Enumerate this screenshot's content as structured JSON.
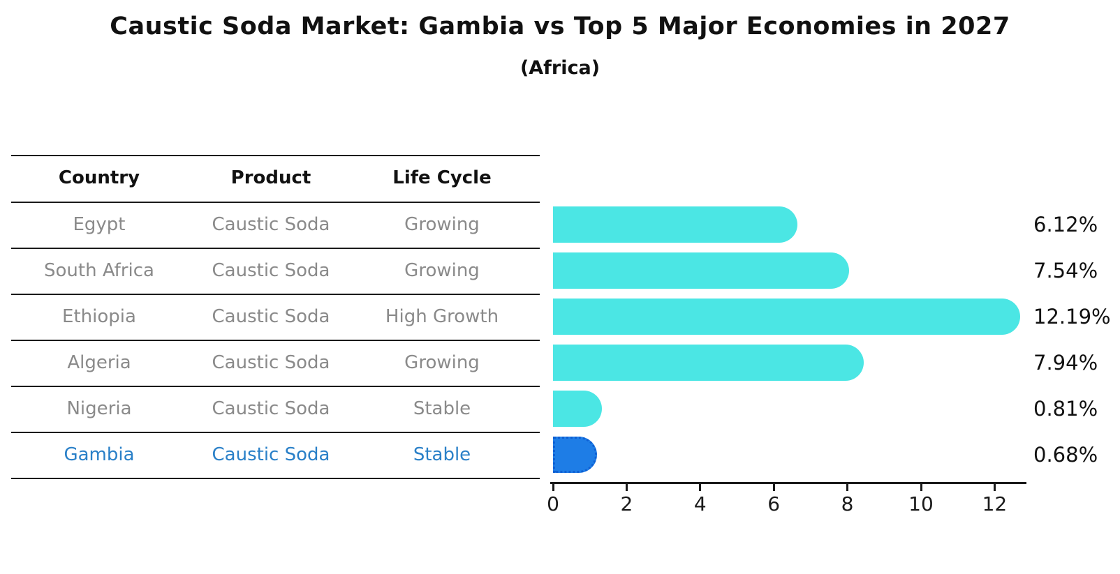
{
  "title": "Caustic Soda Market: Gambia vs Top 5 Major Economies in 2027",
  "subtitle": "(Africa)",
  "table": {
    "headers": [
      "Country",
      "Product",
      "Life Cycle"
    ],
    "rows": [
      {
        "country": "Egypt",
        "product": "Caustic Soda",
        "life_cycle": "Growing",
        "highlight": false
      },
      {
        "country": "South Africa",
        "product": "Caustic Soda",
        "life_cycle": "Growing",
        "highlight": false
      },
      {
        "country": "Ethiopia",
        "product": "Caustic Soda",
        "life_cycle": "High Growth",
        "highlight": false
      },
      {
        "country": "Algeria",
        "product": "Caustic Soda",
        "life_cycle": "Growing",
        "highlight": false
      },
      {
        "country": "Nigeria",
        "product": "Caustic Soda",
        "life_cycle": "Stable",
        "highlight": false
      },
      {
        "country": "Gambia",
        "product": "Caustic Soda",
        "life_cycle": "Stable",
        "highlight": true
      }
    ]
  },
  "chart_data": {
    "type": "bar",
    "orientation": "horizontal",
    "title": "Caustic Soda Market: Gambia vs Top 5 Major Economies in 2027",
    "subtitle": "(Africa)",
    "categories": [
      "Egypt",
      "South Africa",
      "Ethiopia",
      "Algeria",
      "Nigeria",
      "Gambia"
    ],
    "values": [
      6.12,
      7.54,
      12.19,
      7.94,
      0.81,
      0.68
    ],
    "value_labels": [
      "6.12%",
      "7.54%",
      "12.19%",
      "7.94%",
      "0.81%",
      "0.68%"
    ],
    "x_ticks": [
      0,
      2,
      4,
      6,
      8,
      10,
      12
    ],
    "xlim": [
      0,
      12.9
    ],
    "grid": false,
    "legend": "none",
    "highlight_index": 5
  },
  "colors": {
    "bar": "#4be6e4",
    "highlight_bar": "#1e7de6",
    "highlight_text": "#2a80c8",
    "row_text": "#8a8a8a",
    "axis": "#1a1a1a"
  }
}
